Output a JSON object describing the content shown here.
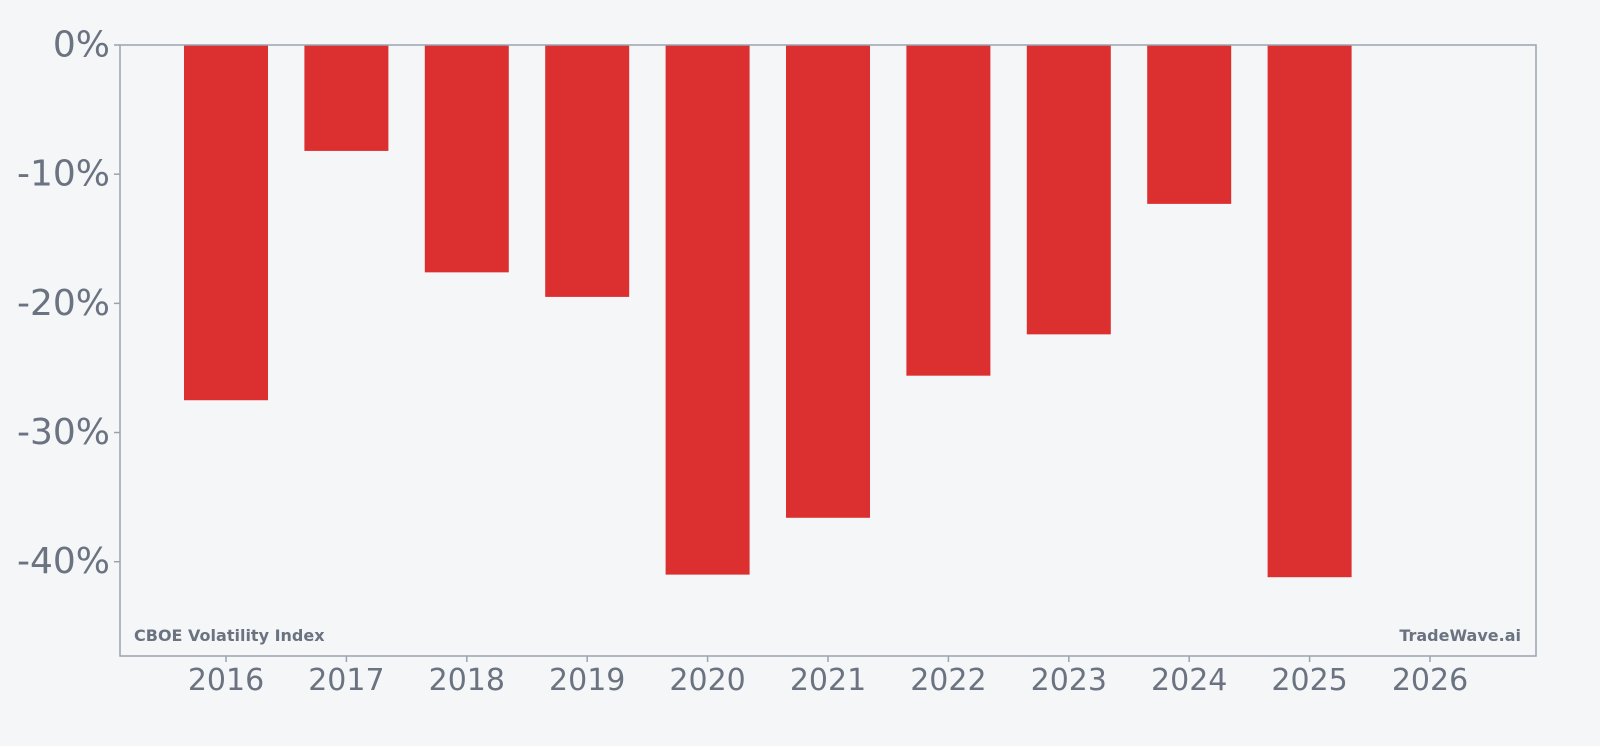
{
  "chart_data": {
    "type": "bar",
    "categories": [
      "2016",
      "2017",
      "2018",
      "2019",
      "2020",
      "2021",
      "2022",
      "2023",
      "2024",
      "2025"
    ],
    "values": [
      -27.5,
      -8.2,
      -17.6,
      -19.5,
      -41.0,
      -36.6,
      -25.6,
      -22.4,
      -12.3,
      -41.2
    ],
    "x_ticks": [
      "2016",
      "2017",
      "2018",
      "2019",
      "2020",
      "2021",
      "2022",
      "2023",
      "2024",
      "2025",
      "2026"
    ],
    "y_ticks": [
      0,
      -10,
      -20,
      -30,
      -40
    ],
    "y_tick_labels": [
      "0%",
      "-10%",
      "-20%",
      "-30%",
      "-40%"
    ],
    "ylim": [
      -47.3,
      0
    ],
    "xlabel": "",
    "ylabel": "",
    "title": "",
    "grid": false,
    "bar_color": "#dc3030",
    "axis_color": "#9ca3af",
    "text_color": "#6b7280",
    "background": "#f4f6f8"
  },
  "annotations": {
    "instrument": "CBOE Volatility Index",
    "brand": "TradeWave.ai"
  }
}
